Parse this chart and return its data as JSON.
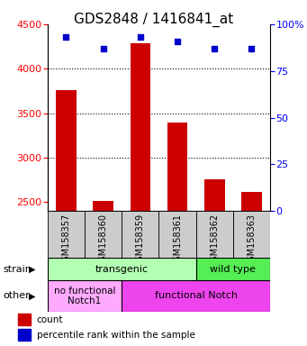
{
  "title": "GDS2848 / 1416841_at",
  "samples": [
    "GSM158357",
    "GSM158360",
    "GSM158359",
    "GSM158361",
    "GSM158362",
    "GSM158363"
  ],
  "counts": [
    3760,
    2510,
    4290,
    3390,
    2760,
    2620
  ],
  "percentiles": [
    93,
    87,
    93,
    91,
    87,
    87
  ],
  "ylim_left": [
    2400,
    4500
  ],
  "ylim_right": [
    0,
    100
  ],
  "yticks_left": [
    2500,
    3000,
    3500,
    4000,
    4500
  ],
  "yticks_right": [
    0,
    25,
    50,
    75,
    100
  ],
  "bar_color": "#cc0000",
  "scatter_color": "#0000cc",
  "transgenic_color": "#b3ffb3",
  "wildtype_color": "#55ee55",
  "nofunc_color": "#ffaaff",
  "func_color": "#ee44ee",
  "grid_color": "#888888",
  "tick_bg_color": "#cccccc",
  "title_fontsize": 11,
  "tick_fontsize": 8,
  "legend_count_label": "count",
  "legend_pct_label": "percentile rank within the sample"
}
